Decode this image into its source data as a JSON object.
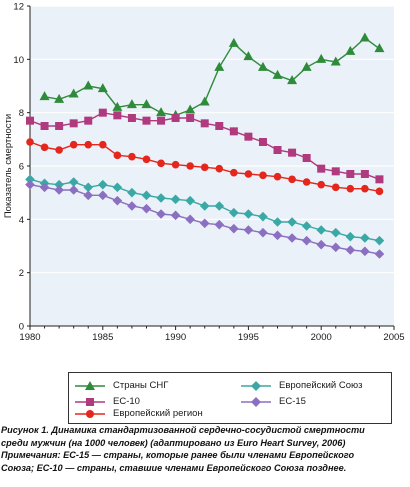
{
  "chart_data": {
    "type": "line",
    "ylabel": "Показатель смертности",
    "xlabel": "",
    "xlim": [
      1980,
      2005
    ],
    "ylim": [
      0,
      12
    ],
    "x_ticks": [
      1980,
      1985,
      1990,
      1995,
      2000,
      2005
    ],
    "y_ticks": [
      0,
      2,
      4,
      6,
      8,
      10,
      12
    ],
    "grid": true,
    "legend_position": "bottom",
    "series": [
      {
        "name": "Страны СНГ",
        "color": "#2e8b3a",
        "marker": "triangle",
        "x": [
          1981,
          1982,
          1983,
          1984,
          1985,
          1986,
          1987,
          1988,
          1989,
          1990,
          1991,
          1992,
          1993,
          1994,
          1995,
          1996,
          1997,
          1998,
          1999,
          2000,
          2001,
          2002,
          2003,
          2004
        ],
        "values": [
          8.6,
          8.5,
          8.7,
          9.0,
          8.9,
          8.2,
          8.3,
          8.3,
          8.0,
          7.9,
          8.1,
          8.4,
          9.7,
          10.6,
          10.1,
          9.7,
          9.4,
          9.2,
          9.7,
          10.0,
          9.9,
          10.3,
          10.8,
          10.4
        ]
      },
      {
        "name": "ЕС-10",
        "color": "#b03a7e",
        "marker": "square",
        "x": [
          1980,
          1981,
          1982,
          1983,
          1984,
          1985,
          1986,
          1987,
          1988,
          1989,
          1990,
          1991,
          1992,
          1993,
          1994,
          1995,
          1996,
          1997,
          1998,
          1999,
          2000,
          2001,
          2002,
          2003,
          2004
        ],
        "values": [
          7.7,
          7.5,
          7.5,
          7.6,
          7.7,
          8.0,
          7.9,
          7.8,
          7.7,
          7.7,
          7.8,
          7.8,
          7.6,
          7.5,
          7.3,
          7.1,
          6.9,
          6.6,
          6.5,
          6.3,
          5.9,
          5.8,
          5.7,
          5.7,
          5.5
        ]
      },
      {
        "name": "Европейский регион",
        "color": "#e4261c",
        "marker": "circle",
        "x": [
          1980,
          1981,
          1982,
          1983,
          1984,
          1985,
          1986,
          1987,
          1988,
          1989,
          1990,
          1991,
          1992,
          1993,
          1994,
          1995,
          1996,
          1997,
          1998,
          1999,
          2000,
          2001,
          2002,
          2003,
          2004
        ],
        "values": [
          6.9,
          6.7,
          6.6,
          6.8,
          6.8,
          6.8,
          6.4,
          6.35,
          6.25,
          6.1,
          6.05,
          6.0,
          5.95,
          5.9,
          5.75,
          5.7,
          5.65,
          5.6,
          5.5,
          5.4,
          5.3,
          5.2,
          5.15,
          5.15,
          5.05
        ]
      },
      {
        "name": "Европейский Союз",
        "color": "#3aa8a4",
        "marker": "diamond",
        "x": [
          1980,
          1981,
          1982,
          1983,
          1984,
          1985,
          1986,
          1987,
          1988,
          1989,
          1990,
          1991,
          1992,
          1993,
          1994,
          1995,
          1996,
          1997,
          1998,
          1999,
          2000,
          2001,
          2002,
          2003,
          2004
        ],
        "values": [
          5.5,
          5.35,
          5.3,
          5.4,
          5.2,
          5.3,
          5.2,
          5.0,
          4.9,
          4.8,
          4.75,
          4.7,
          4.5,
          4.5,
          4.25,
          4.2,
          4.1,
          3.9,
          3.9,
          3.75,
          3.6,
          3.5,
          3.35,
          3.3,
          3.2
        ]
      },
      {
        "name": "ЕС-15",
        "color": "#8b6fc0",
        "marker": "diamond",
        "x": [
          1980,
          1981,
          1982,
          1983,
          1984,
          1985,
          1986,
          1987,
          1988,
          1989,
          1990,
          1991,
          1992,
          1993,
          1994,
          1995,
          1996,
          1997,
          1998,
          1999,
          2000,
          2001,
          2002,
          2003,
          2004
        ],
        "values": [
          5.3,
          5.2,
          5.1,
          5.1,
          4.9,
          4.9,
          4.7,
          4.5,
          4.4,
          4.2,
          4.15,
          4.0,
          3.85,
          3.8,
          3.65,
          3.6,
          3.5,
          3.4,
          3.3,
          3.2,
          3.05,
          2.95,
          2.85,
          2.8,
          2.7
        ]
      }
    ]
  },
  "caption": {
    "line1": "Рисунок 1. Динамика стандартизованной сердечно-сосудистой смертности",
    "line2": "среди мужчин (на 1000 человек) (адаптировано из Euro Heart Survey, 2006)",
    "line3": "Примечания: ЕС-15 — страны, которые ранее были членами Европейского",
    "line4": "Союза; ЕС-10 — страны, ставшие членами Европейского Союза позднее."
  }
}
